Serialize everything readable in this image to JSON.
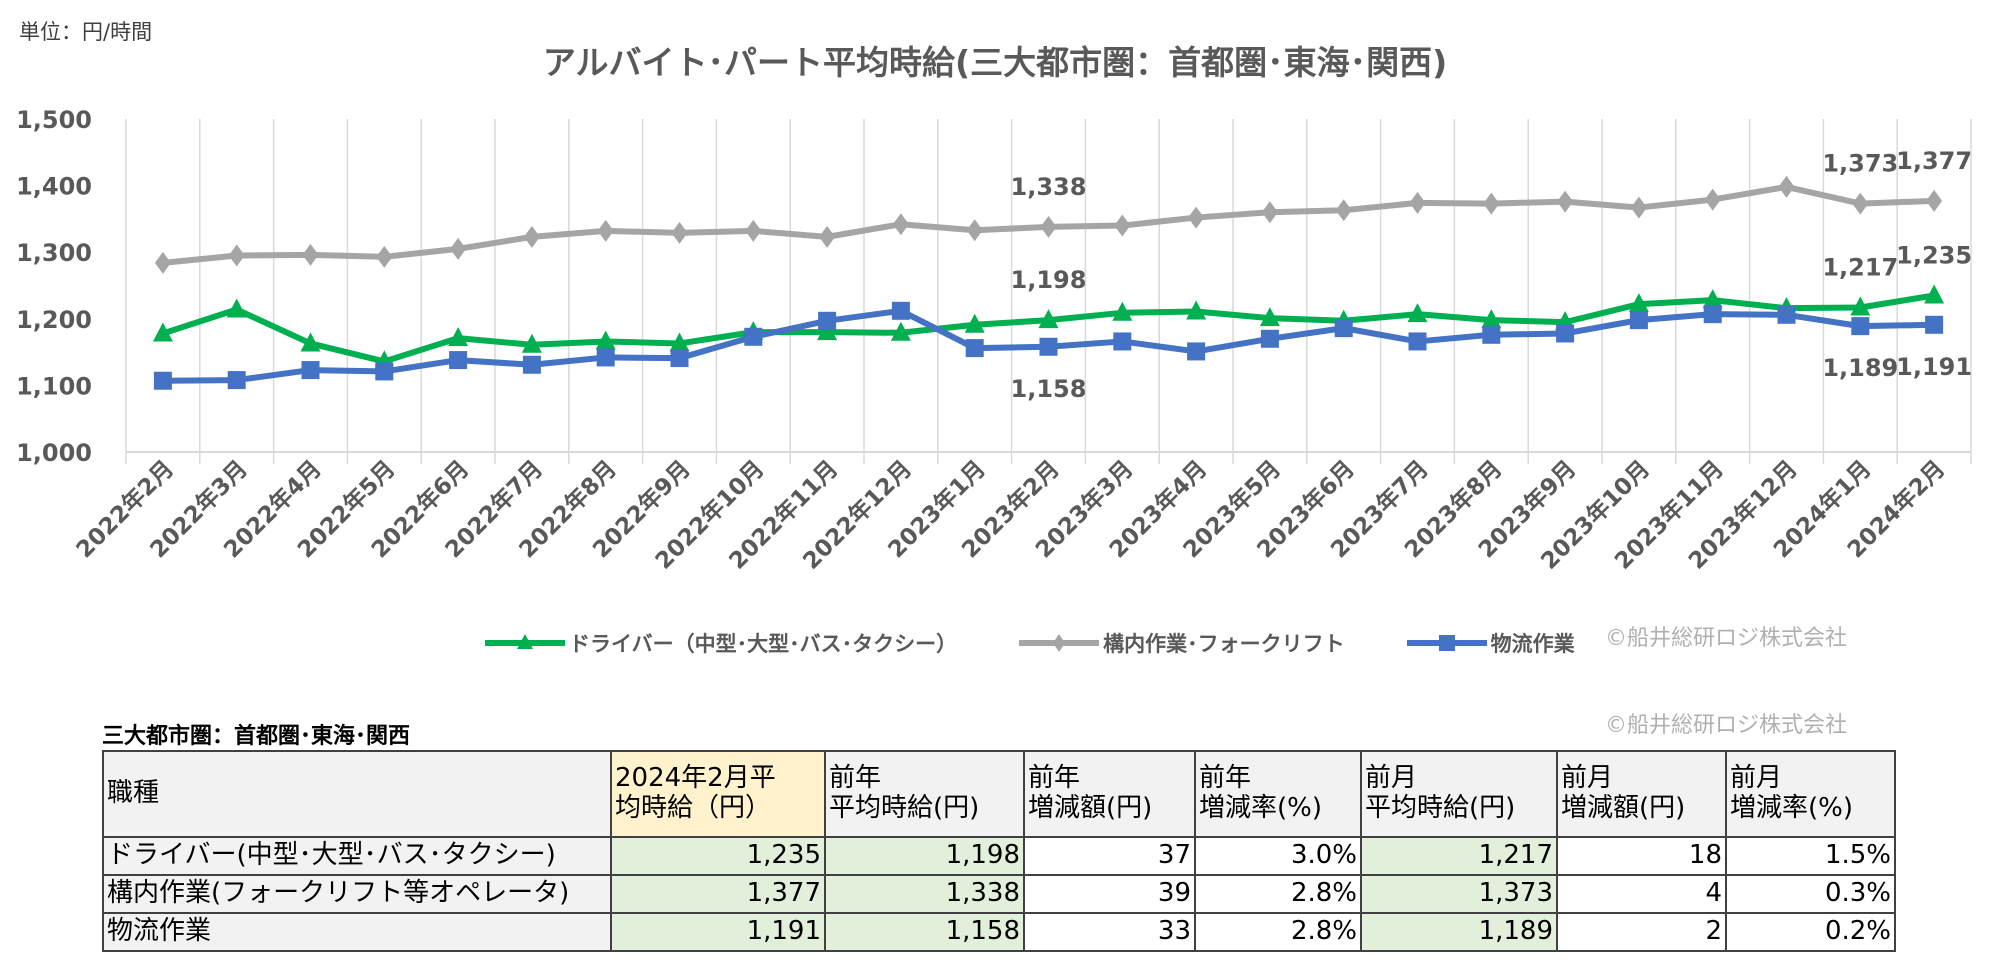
{
  "unit_label": "単位：円/時間",
  "copyright": "©船井総研ロジ株式会社",
  "chart_data": {
    "type": "line",
    "title": "アルバイト･パート平均時給(三大都市圏：首都圏･東海･関西)",
    "xlabel": "",
    "ylabel": "",
    "ylim": [
      1000,
      1500
    ],
    "yticks": [
      1000,
      1100,
      1200,
      1300,
      1400,
      1500
    ],
    "ytick_labels": [
      "1,000",
      "1,100",
      "1,200",
      "1,300",
      "1,400",
      "1,500"
    ],
    "grid": "vertical",
    "legend": "bottom",
    "categories": [
      "2022年2月",
      "2022年3月",
      "2022年4月",
      "2022年5月",
      "2022年6月",
      "2022年7月",
      "2022年8月",
      "2022年9月",
      "2022年10月",
      "2022年11月",
      "2022年12月",
      "2023年1月",
      "2023年2月",
      "2023年3月",
      "2023年4月",
      "2023年5月",
      "2023年6月",
      "2023年7月",
      "2023年8月",
      "2023年9月",
      "2023年10月",
      "2023年11月",
      "2023年12月",
      "2024年1月",
      "2024年2月"
    ],
    "series": [
      {
        "name": "ドライバー（中型･大型･バス･タクシー）",
        "color": "#00b050",
        "marker": "triangle",
        "values": [
          1178,
          1214,
          1163,
          1136,
          1171,
          1161,
          1166,
          1163,
          1180,
          1180,
          1179,
          1191,
          1198,
          1209,
          1211,
          1201,
          1197,
          1207,
          1198,
          1195,
          1222,
          1228,
          1216,
          1217,
          1235
        ],
        "data_labels": {
          "12": "1,198",
          "23": "1,217",
          "24": "1,235"
        },
        "label_side": "above"
      },
      {
        "name": "構内作業･フォークリフト",
        "color": "#a5a5a5",
        "marker": "diamond",
        "values": [
          1284,
          1295,
          1296,
          1293,
          1305,
          1323,
          1332,
          1329,
          1332,
          1323,
          1342,
          1333,
          1338,
          1340,
          1352,
          1360,
          1363,
          1374,
          1373,
          1376,
          1367,
          1379,
          1398,
          1373,
          1377
        ],
        "data_labels": {
          "12": "1,338",
          "23": "1,373",
          "24": "1,377"
        },
        "label_side": "above"
      },
      {
        "name": "物流作業",
        "color": "#4472c4",
        "marker": "square",
        "values": [
          1107,
          1108,
          1123,
          1121,
          1138,
          1131,
          1142,
          1141,
          1173,
          1197,
          1212,
          1156,
          1158,
          1166,
          1151,
          1170,
          1186,
          1166,
          1176,
          1178,
          1198,
          1207,
          1206,
          1189,
          1191
        ],
        "data_labels": {
          "12": "1,158",
          "23": "1,189",
          "24": "1,191"
        },
        "label_side": "below"
      }
    ]
  },
  "table": {
    "title": "三大都市圏：首都圏･東海･関西",
    "headers": [
      [
        "職種"
      ],
      [
        "2024年2月平",
        "均時給（円）"
      ],
      [
        "前年",
        "平均時給(円)"
      ],
      [
        "前年",
        "増減額(円)"
      ],
      [
        "前年",
        "増減率(%)"
      ],
      [
        "前月",
        "平均時給(円)"
      ],
      [
        "前月",
        "増減額(円)"
      ],
      [
        "前月",
        "増減率(%)"
      ]
    ],
    "rows": [
      [
        "ドライバー(中型･大型･バス･タクシー)",
        "1,235",
        "1,198",
        "37",
        "3.0%",
        "1,217",
        "18",
        "1.5%"
      ],
      [
        "構内作業(フォークリフト等オペレータ)",
        "1,377",
        "1,338",
        "39",
        "2.8%",
        "1,373",
        "4",
        "0.3%"
      ],
      [
        "物流作業",
        "1,191",
        "1,158",
        "33",
        "2.8%",
        "1,189",
        "2",
        "0.2%"
      ]
    ]
  }
}
